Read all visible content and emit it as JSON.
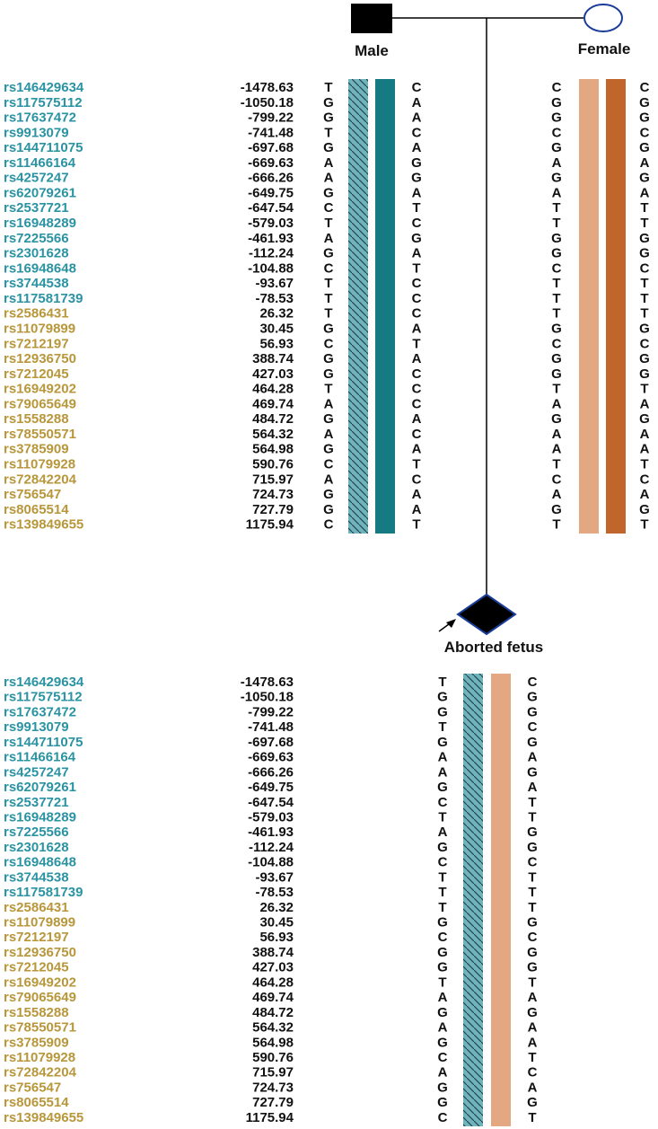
{
  "labels": {
    "male": "Male",
    "female": "Female",
    "fetus": "Aborted fetus"
  },
  "colors": {
    "upstream_snp": "#2a93a3",
    "downstream_snp": "#b8963a",
    "male_hatched": "#6fb3bd",
    "male_solid": "#167a82",
    "female_light": "#e3a882",
    "female_dark": "#c0652b",
    "line": "#000000",
    "female_symbol_stroke": "#1a3d99",
    "fetus_outline": "#1a3d99"
  },
  "snps": [
    {
      "id": "rs146429634",
      "pos": "-1478.63",
      "group": "upstream"
    },
    {
      "id": "rs117575112",
      "pos": "-1050.18",
      "group": "upstream"
    },
    {
      "id": "rs17637472",
      "pos": "-799.22",
      "group": "upstream"
    },
    {
      "id": "rs9913079",
      "pos": "-741.48",
      "group": "upstream"
    },
    {
      "id": "rs144711075",
      "pos": "-697.68",
      "group": "upstream"
    },
    {
      "id": "rs11466164",
      "pos": "-669.63",
      "group": "upstream"
    },
    {
      "id": "rs4257247",
      "pos": "-666.26",
      "group": "upstream"
    },
    {
      "id": "rs62079261",
      "pos": "-649.75",
      "group": "upstream"
    },
    {
      "id": "rs2537721",
      "pos": "-647.54",
      "group": "upstream"
    },
    {
      "id": "rs16948289",
      "pos": "-579.03",
      "group": "upstream"
    },
    {
      "id": "rs7225566",
      "pos": "-461.93",
      "group": "upstream"
    },
    {
      "id": "rs2301628",
      "pos": "-112.24",
      "group": "upstream"
    },
    {
      "id": "rs16948648",
      "pos": "-104.88",
      "group": "upstream"
    },
    {
      "id": "rs3744538",
      "pos": "-93.67",
      "group": "upstream"
    },
    {
      "id": "rs117581739",
      "pos": "-78.53",
      "group": "upstream"
    },
    {
      "id": "rs2586431",
      "pos": "26.32",
      "group": "downstream"
    },
    {
      "id": "rs11079899",
      "pos": "30.45",
      "group": "downstream"
    },
    {
      "id": "rs7212197",
      "pos": "56.93",
      "group": "downstream"
    },
    {
      "id": "rs12936750",
      "pos": "388.74",
      "group": "downstream"
    },
    {
      "id": "rs7212045",
      "pos": "427.03",
      "group": "downstream"
    },
    {
      "id": "rs16949202",
      "pos": "464.28",
      "group": "downstream"
    },
    {
      "id": "rs79065649",
      "pos": "469.74",
      "group": "downstream"
    },
    {
      "id": "rs1558288",
      "pos": "484.72",
      "group": "downstream"
    },
    {
      "id": "rs78550571",
      "pos": "564.32",
      "group": "downstream"
    },
    {
      "id": "rs3785909",
      "pos": "564.98",
      "group": "downstream"
    },
    {
      "id": "rs11079928",
      "pos": "590.76",
      "group": "downstream"
    },
    {
      "id": "rs72842204",
      "pos": "715.97",
      "group": "downstream"
    },
    {
      "id": "rs756547",
      "pos": "724.73",
      "group": "downstream"
    },
    {
      "id": "rs8065514",
      "pos": "727.79",
      "group": "downstream"
    },
    {
      "id": "rs139849655",
      "pos": "1175.94",
      "group": "downstream"
    }
  ],
  "male": {
    "left": [
      "T",
      "G",
      "G",
      "T",
      "G",
      "A",
      "A",
      "G",
      "C",
      "T",
      "A",
      "G",
      "C",
      "T",
      "T",
      "T",
      "G",
      "C",
      "G",
      "G",
      "T",
      "A",
      "G",
      "A",
      "G",
      "C",
      "A",
      "G",
      "G",
      "C"
    ],
    "right": [
      "C",
      "A",
      "A",
      "C",
      "A",
      "G",
      "G",
      "A",
      "T",
      "C",
      "G",
      "A",
      "T",
      "C",
      "C",
      "C",
      "A",
      "T",
      "A",
      "C",
      "C",
      "C",
      "A",
      "C",
      "A",
      "T",
      "C",
      "A",
      "A",
      "T"
    ]
  },
  "female": {
    "left": [
      "C",
      "G",
      "G",
      "C",
      "G",
      "A",
      "G",
      "A",
      "T",
      "T",
      "G",
      "G",
      "C",
      "T",
      "T",
      "T",
      "G",
      "C",
      "G",
      "G",
      "T",
      "A",
      "G",
      "A",
      "A",
      "T",
      "C",
      "A",
      "G",
      "T"
    ],
    "right": [
      "C",
      "G",
      "G",
      "C",
      "G",
      "A",
      "G",
      "A",
      "T",
      "T",
      "G",
      "G",
      "C",
      "T",
      "T",
      "T",
      "G",
      "C",
      "G",
      "G",
      "T",
      "A",
      "G",
      "A",
      "A",
      "T",
      "C",
      "A",
      "G",
      "T"
    ]
  },
  "fetus": {
    "left": [
      "T",
      "G",
      "G",
      "T",
      "G",
      "A",
      "A",
      "G",
      "C",
      "T",
      "A",
      "G",
      "C",
      "T",
      "T",
      "T",
      "G",
      "C",
      "G",
      "G",
      "T",
      "A",
      "G",
      "A",
      "G",
      "C",
      "A",
      "G",
      "G",
      "C"
    ],
    "right": [
      "C",
      "G",
      "G",
      "C",
      "G",
      "A",
      "G",
      "A",
      "T",
      "T",
      "G",
      "G",
      "C",
      "T",
      "T",
      "T",
      "G",
      "C",
      "G",
      "G",
      "T",
      "A",
      "G",
      "A",
      "A",
      "T",
      "C",
      "A",
      "G",
      "T"
    ]
  }
}
